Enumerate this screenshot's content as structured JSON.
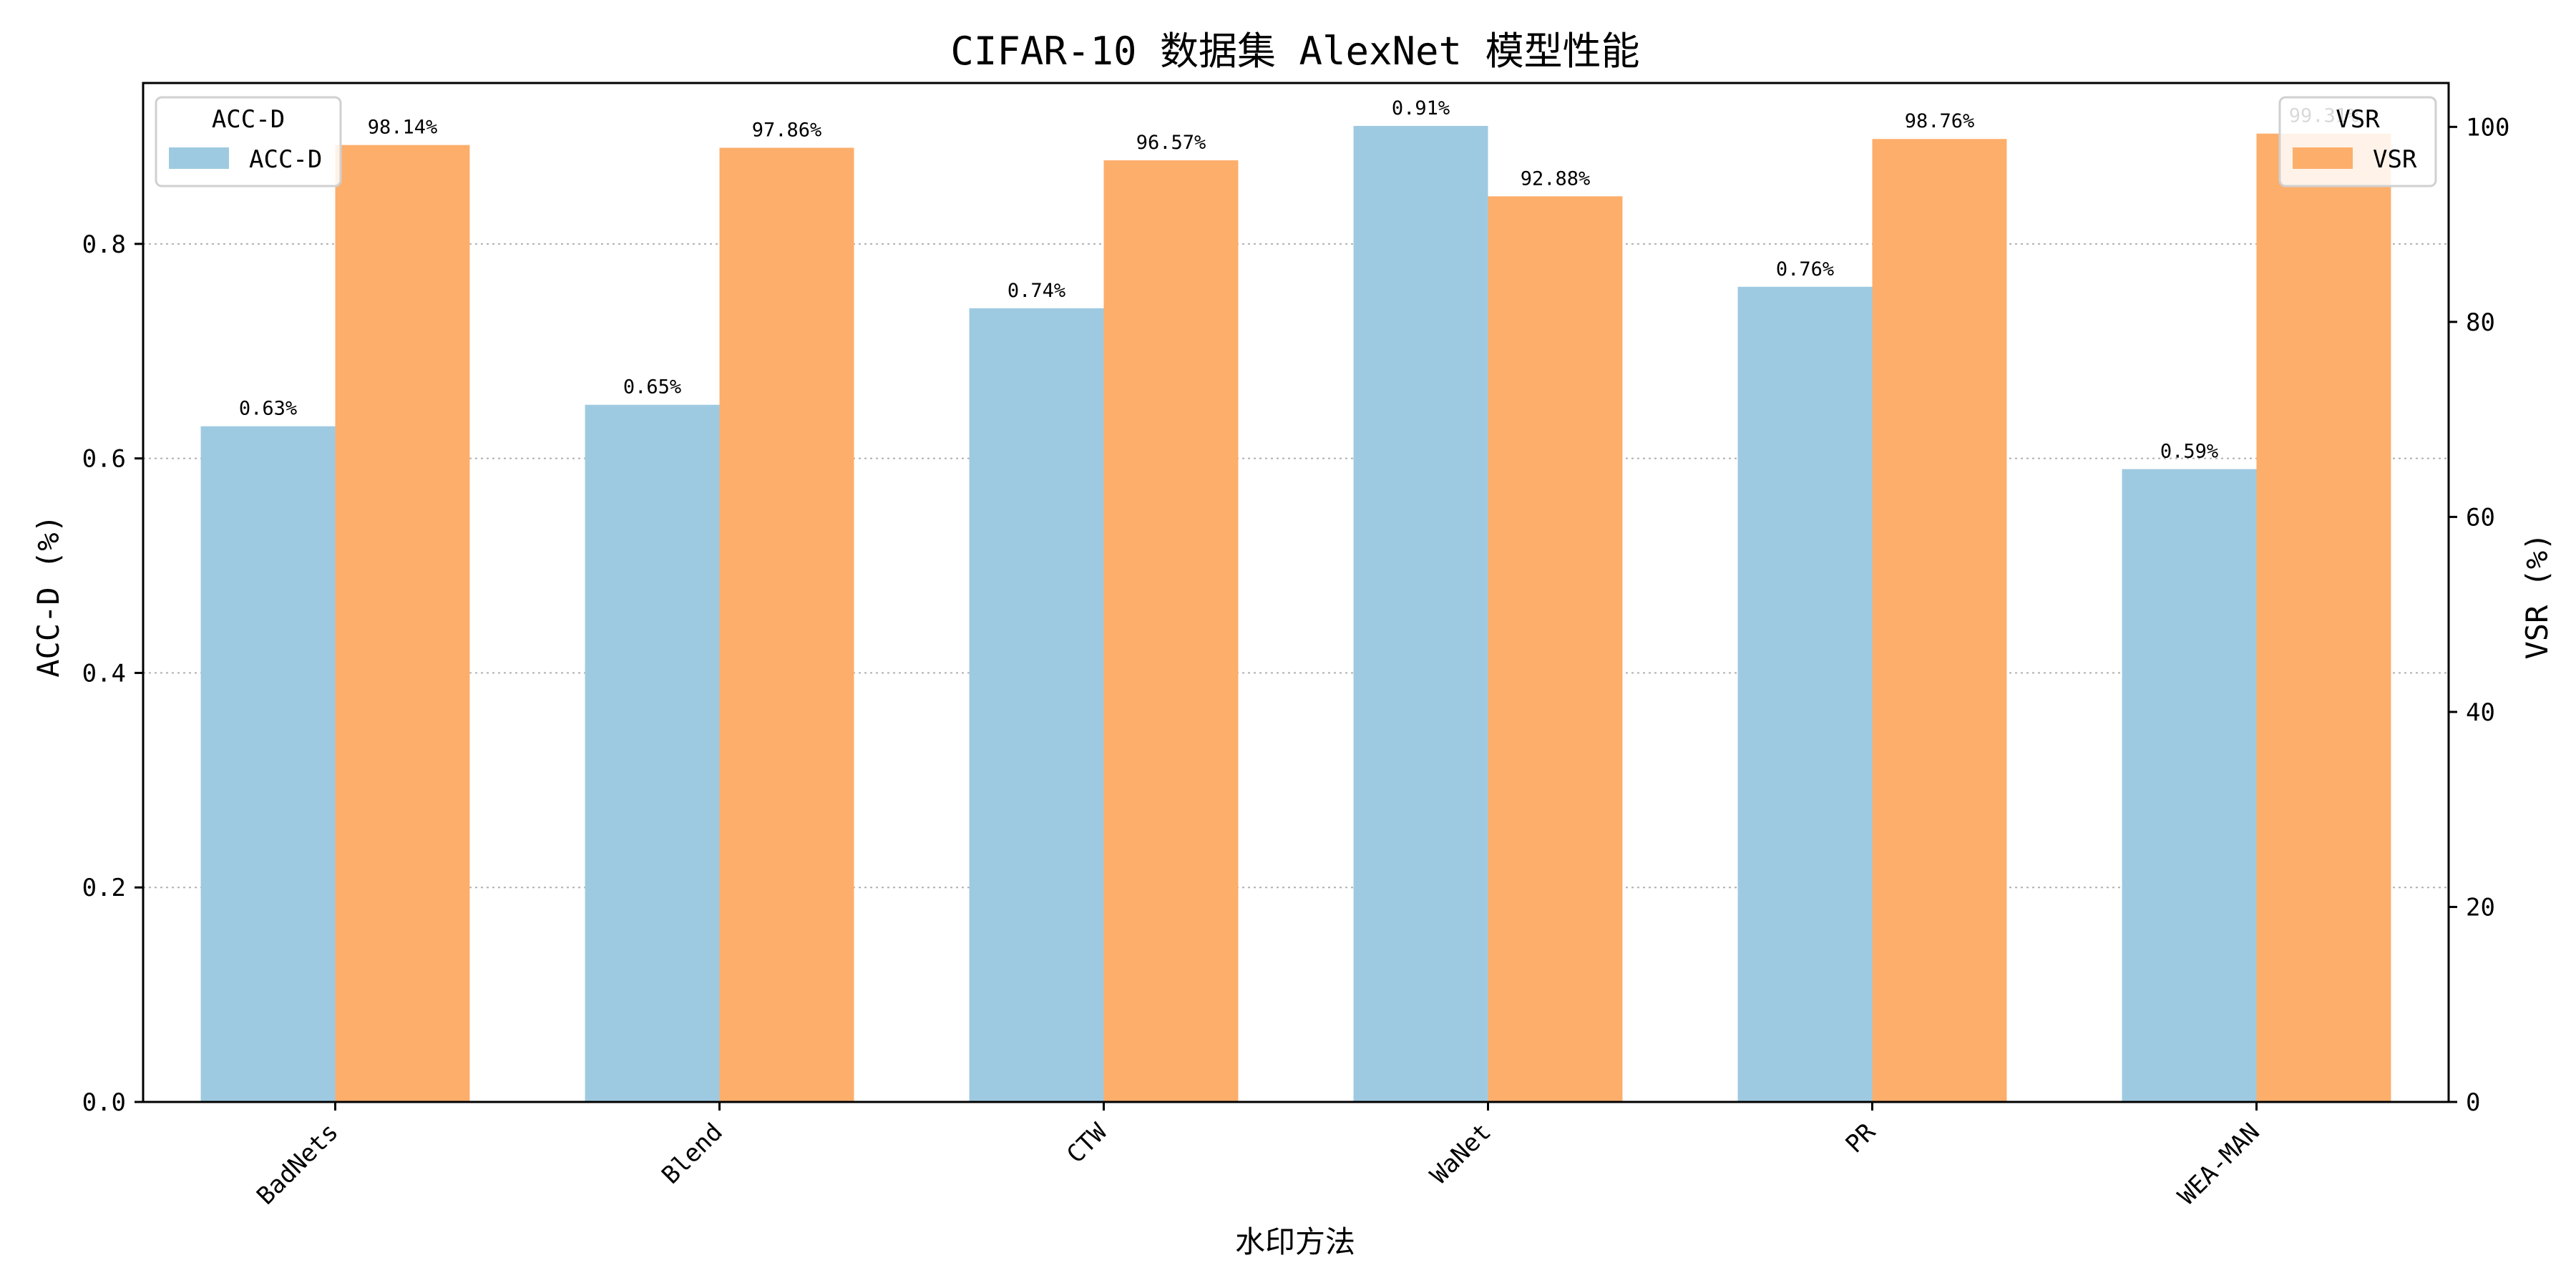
{
  "chart_data": {
    "type": "bar",
    "title": "CIFAR-10 数据集 AlexNet 模型性能",
    "xlabel": "水印方法",
    "categories": [
      "BadNets",
      "Blend",
      "CTW",
      "WaNet",
      "PR",
      "WEA-MAN"
    ],
    "left_axis": {
      "label": "ACC-D (%)",
      "ylim": [
        0,
        0.95
      ],
      "ticks": [
        "0.0",
        "0.2",
        "0.4",
        "0.6",
        "0.8"
      ],
      "tick_values": [
        0,
        0.2,
        0.4,
        0.6,
        0.8
      ]
    },
    "right_axis": {
      "label": "VSR (%)",
      "ylim": [
        0,
        104.5
      ],
      "ticks": [
        "0",
        "20",
        "40",
        "60",
        "80",
        "100"
      ],
      "tick_values": [
        0,
        20,
        40,
        60,
        80,
        100
      ]
    },
    "grid": "horizontal dotted",
    "series": [
      {
        "name": "ACC-D",
        "axis": "left",
        "color": "#9ecae1",
        "values": [
          0.63,
          0.65,
          0.74,
          0.91,
          0.76,
          0.59
        ],
        "labels": [
          "0.63%",
          "0.65%",
          "0.74%",
          "0.91%",
          "0.76%",
          "0.59%"
        ]
      },
      {
        "name": "VSR",
        "axis": "right",
        "color": "#fdae6b",
        "values": [
          98.14,
          97.86,
          96.57,
          92.88,
          98.76,
          99.31
        ],
        "labels": [
          "98.14%",
          "97.86%",
          "96.57%",
          "92.88%",
          "98.76%",
          "99.31%"
        ]
      }
    ],
    "legends": [
      {
        "title": "ACC-D",
        "entry": "ACC-D",
        "placement": "top-left"
      },
      {
        "title": "VSR",
        "entry": "VSR",
        "placement": "top-right"
      }
    ]
  }
}
